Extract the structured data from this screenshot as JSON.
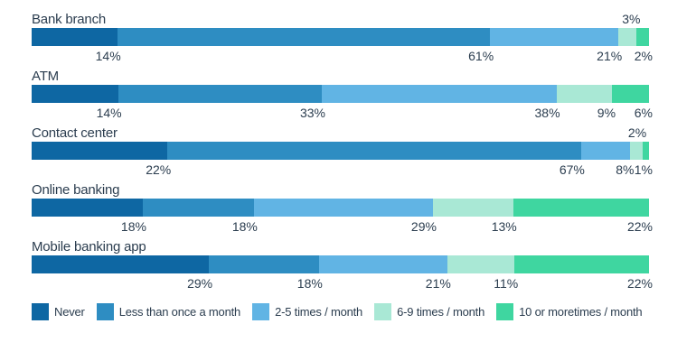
{
  "chart_data": {
    "type": "bar",
    "stacked": true,
    "orientation": "horizontal",
    "title": "",
    "unit": "%",
    "grid": false,
    "legend_position": "bottom",
    "categories": [
      "Bank branch",
      "ATM",
      "Contact center",
      "Online banking",
      "Mobile banking app"
    ],
    "legend": [
      {
        "name": "Never",
        "color": "#0E67A3"
      },
      {
        "name": "Less than once a month",
        "color": "#2E8DC2"
      },
      {
        "name": "2-5 times / month",
        "color": "#61B4E4"
      },
      {
        "name": "6-9 times / month",
        "color": "#A9E8D5"
      },
      {
        "name": "10 or moretimes / month",
        "color": "#3FD6A0"
      }
    ],
    "rows": [
      {
        "label": "Bank branch",
        "values": [
          14,
          61,
          21,
          3,
          2
        ],
        "label_pos": [
          "below",
          "below",
          "below",
          "above",
          "below"
        ]
      },
      {
        "label": "ATM",
        "values": [
          14,
          33,
          38,
          9,
          6
        ],
        "label_pos": [
          "below",
          "below",
          "below",
          "below",
          "below"
        ]
      },
      {
        "label": "Contact center",
        "values": [
          22,
          67,
          8,
          2,
          1
        ],
        "label_pos": [
          "below",
          "below",
          "below",
          "above",
          "below"
        ]
      },
      {
        "label": "Online banking",
        "values": [
          18,
          18,
          29,
          13,
          22
        ],
        "label_pos": [
          "below",
          "below",
          "below",
          "below",
          "below"
        ]
      },
      {
        "label": "Mobile banking app",
        "values": [
          29,
          18,
          21,
          11,
          22
        ],
        "label_pos": [
          "below",
          "below",
          "below",
          "below",
          "below"
        ]
      }
    ],
    "series": [
      {
        "name": "Never",
        "values": [
          14,
          14,
          22,
          18,
          29
        ]
      },
      {
        "name": "Less than once a month",
        "values": [
          61,
          33,
          67,
          18,
          18
        ]
      },
      {
        "name": "2-5 times / month",
        "values": [
          21,
          38,
          8,
          29,
          21
        ]
      },
      {
        "name": "6-9 times / month",
        "values": [
          3,
          9,
          2,
          13,
          11
        ]
      },
      {
        "name": "10 or moretimes / month",
        "values": [
          2,
          6,
          1,
          22,
          22
        ]
      }
    ],
    "text_color": "#2B3D4F"
  }
}
